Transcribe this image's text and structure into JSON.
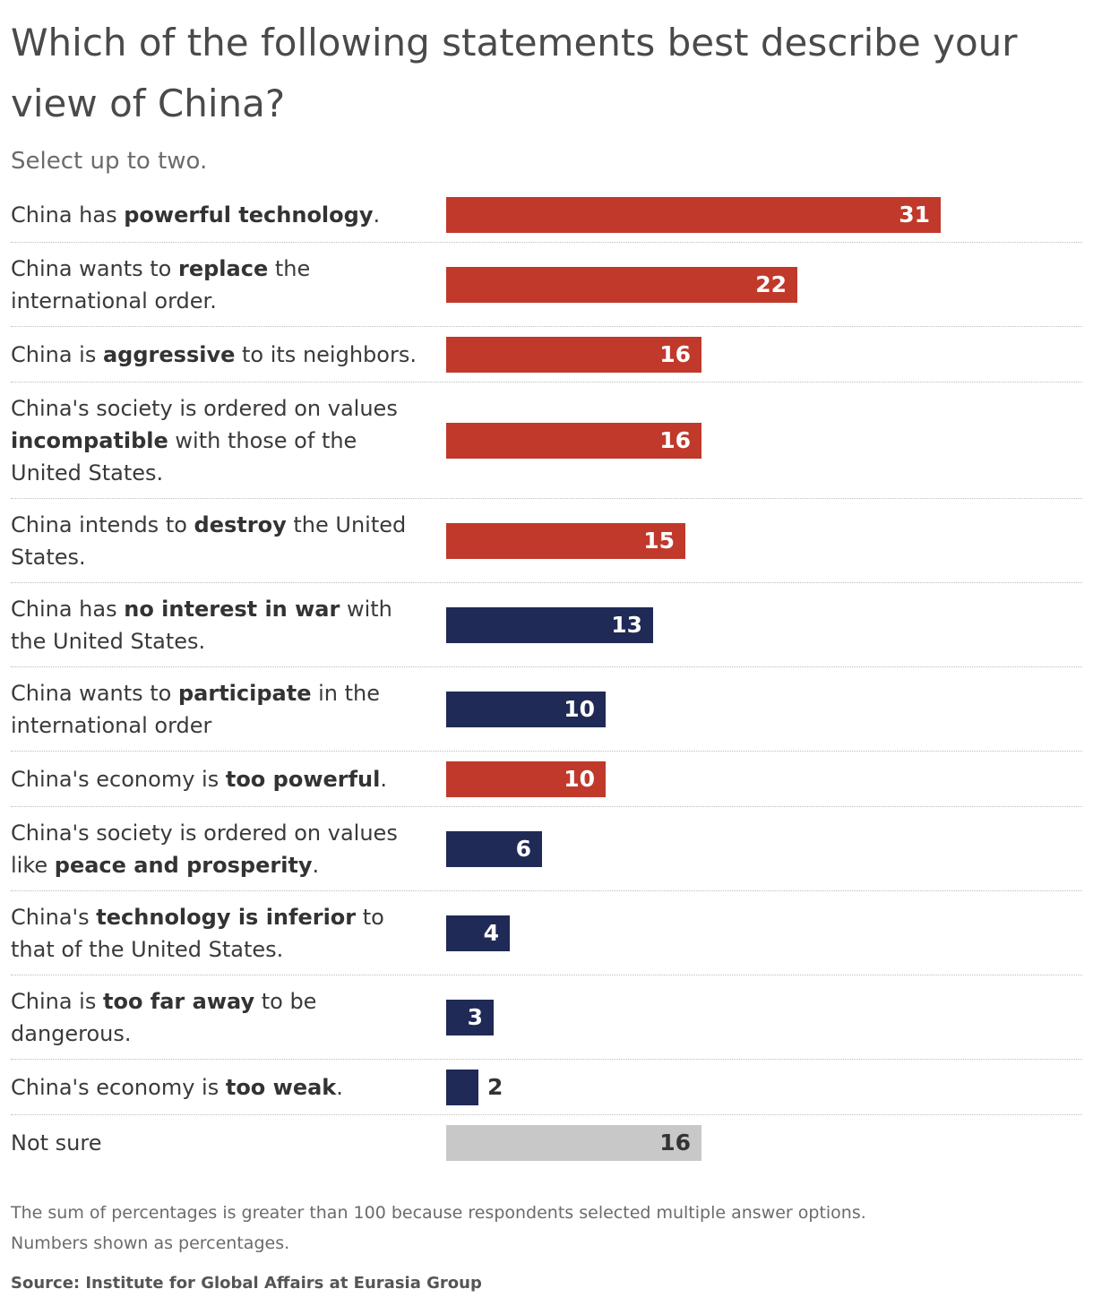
{
  "title": "Which of the following statements best describe your view of China?",
  "subtitle": "Select up to two.",
  "notes": [
    "The sum of percentages is greater than  100 because respondents selected multiple answer options.",
    "Numbers shown as percentages."
  ],
  "source": "Source: Institute for Global Affairs at Eurasia Group",
  "colors": {
    "negative": "#c0392b",
    "positive": "#1f2a56",
    "neutral": "#c8c8c8",
    "label_on_bar": "#ffffff",
    "label_dark": "#333333"
  },
  "chart_data": {
    "type": "bar",
    "orientation": "horizontal",
    "title": "Which of the following statements best describe your view of China?",
    "subtitle": "Select up to two.",
    "xlim": [
      0,
      31
    ],
    "grid": false,
    "categories": [
      "China has powerful technology.",
      "China wants to replace the international order.",
      "China is aggressive to its neighbors.",
      "China's society is ordered on values incompatible with those of the United States.",
      "China intends to destroy the United States.",
      "China has no interest in war with the United States.",
      "China wants to participate in the international order",
      "China's economy is too powerful.",
      "China's society is ordered on values like peace and prosperity.",
      "China's technology is inferior to that of the United States.",
      "China is too far away to be dangerous.",
      "China's economy is too weak.",
      "Not sure"
    ],
    "values": [
      31,
      22,
      16,
      16,
      15,
      13,
      10,
      10,
      6,
      4,
      3,
      2,
      16
    ],
    "bar_colors": [
      "negative",
      "negative",
      "negative",
      "negative",
      "negative",
      "positive",
      "positive",
      "negative",
      "positive",
      "positive",
      "positive",
      "positive",
      "neutral"
    ],
    "label_parts": [
      [
        {
          "t": "China has "
        },
        {
          "t": "powerful technology",
          "b": true
        },
        {
          "t": "."
        }
      ],
      [
        {
          "t": "China wants to "
        },
        {
          "t": "replace",
          "b": true
        },
        {
          "t": " the international order."
        }
      ],
      [
        {
          "t": "China is "
        },
        {
          "t": "aggressive",
          "b": true
        },
        {
          "t": " to its neighbors."
        }
      ],
      [
        {
          "t": "China's society is ordered on values "
        },
        {
          "t": "incompatible",
          "b": true
        },
        {
          "t": " with those of the United States."
        }
      ],
      [
        {
          "t": "China intends to "
        },
        {
          "t": "destroy",
          "b": true
        },
        {
          "t": " the United States."
        }
      ],
      [
        {
          "t": "China has "
        },
        {
          "t": "no interest in war",
          "b": true
        },
        {
          "t": " with the United States."
        }
      ],
      [
        {
          "t": "China wants to "
        },
        {
          "t": "participate",
          "b": true
        },
        {
          "t": " in the international order"
        }
      ],
      [
        {
          "t": "China's economy is "
        },
        {
          "t": "too powerful",
          "b": true
        },
        {
          "t": "."
        }
      ],
      [
        {
          "t": "China's society is ordered on values like "
        },
        {
          "t": "peace and prosperity",
          "b": true
        },
        {
          "t": "."
        }
      ],
      [
        {
          "t": "China's "
        },
        {
          "t": "technology is inferior",
          "b": true
        },
        {
          "t": " to that of the United States."
        }
      ],
      [
        {
          "t": "China is "
        },
        {
          "t": "too far away",
          "b": true
        },
        {
          "t": " to be dangerous."
        }
      ],
      [
        {
          "t": "China's economy is "
        },
        {
          "t": "too weak",
          "b": true
        },
        {
          "t": "."
        }
      ],
      [
        {
          "t": "Not sure"
        }
      ]
    ]
  }
}
